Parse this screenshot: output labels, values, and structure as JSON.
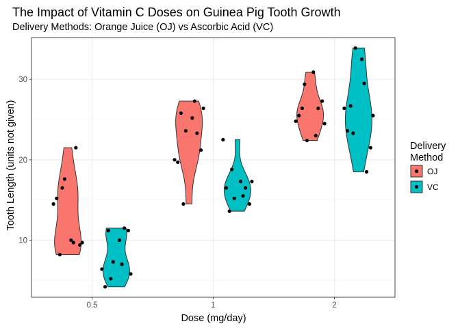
{
  "chart_data": {
    "type": "violin",
    "title": "The Impact of Vitamin C Doses on Guinea Pig Tooth Growth",
    "subtitle": "Delivery Methods: Orange Juice (OJ) vs Ascorbic Acid (VC)",
    "xlabel": "Dose (mg/day)",
    "ylabel": "Tooth Length (units not given)",
    "categories": [
      "0.5",
      "1",
      "2"
    ],
    "yticks": [
      10,
      20,
      30
    ],
    "ylim": [
      2.9,
      35.2
    ],
    "grid": true,
    "legend": {
      "title_lines": [
        "Delivery",
        "Method"
      ],
      "placement": "right",
      "entries": [
        {
          "label": "OJ",
          "color": "#F8766D"
        },
        {
          "label": "VC",
          "color": "#00BFC4"
        }
      ]
    },
    "series": [
      {
        "name": "OJ",
        "color": "#F8766D",
        "groups": [
          {
            "dose": "0.5",
            "values": [
              15.2,
              21.5,
              17.6,
              9.7,
              14.5,
              10.0,
              8.2,
              9.4,
              16.5,
              9.7
            ]
          },
          {
            "dose": "1",
            "values": [
              19.7,
              23.3,
              23.6,
              26.4,
              20.0,
              25.2,
              25.8,
              21.2,
              14.5,
              27.3
            ]
          },
          {
            "dose": "2",
            "values": [
              25.5,
              26.4,
              22.4,
              24.5,
              24.8,
              30.9,
              26.4,
              27.3,
              29.4,
              23.0
            ]
          }
        ]
      },
      {
        "name": "VC",
        "color": "#00BFC4",
        "groups": [
          {
            "dose": "0.5",
            "values": [
              4.2,
              11.5,
              7.3,
              5.8,
              6.4,
              10.0,
              11.2,
              11.2,
              5.2,
              7.0
            ]
          },
          {
            "dose": "1",
            "values": [
              16.5,
              16.5,
              15.2,
              17.3,
              22.5,
              17.3,
              13.6,
              14.5,
              18.8,
              15.5
            ]
          },
          {
            "dose": "2",
            "values": [
              23.6,
              18.5,
              33.9,
              25.5,
              26.4,
              32.5,
              26.7,
              21.5,
              23.3,
              29.5
            ]
          }
        ]
      }
    ]
  }
}
